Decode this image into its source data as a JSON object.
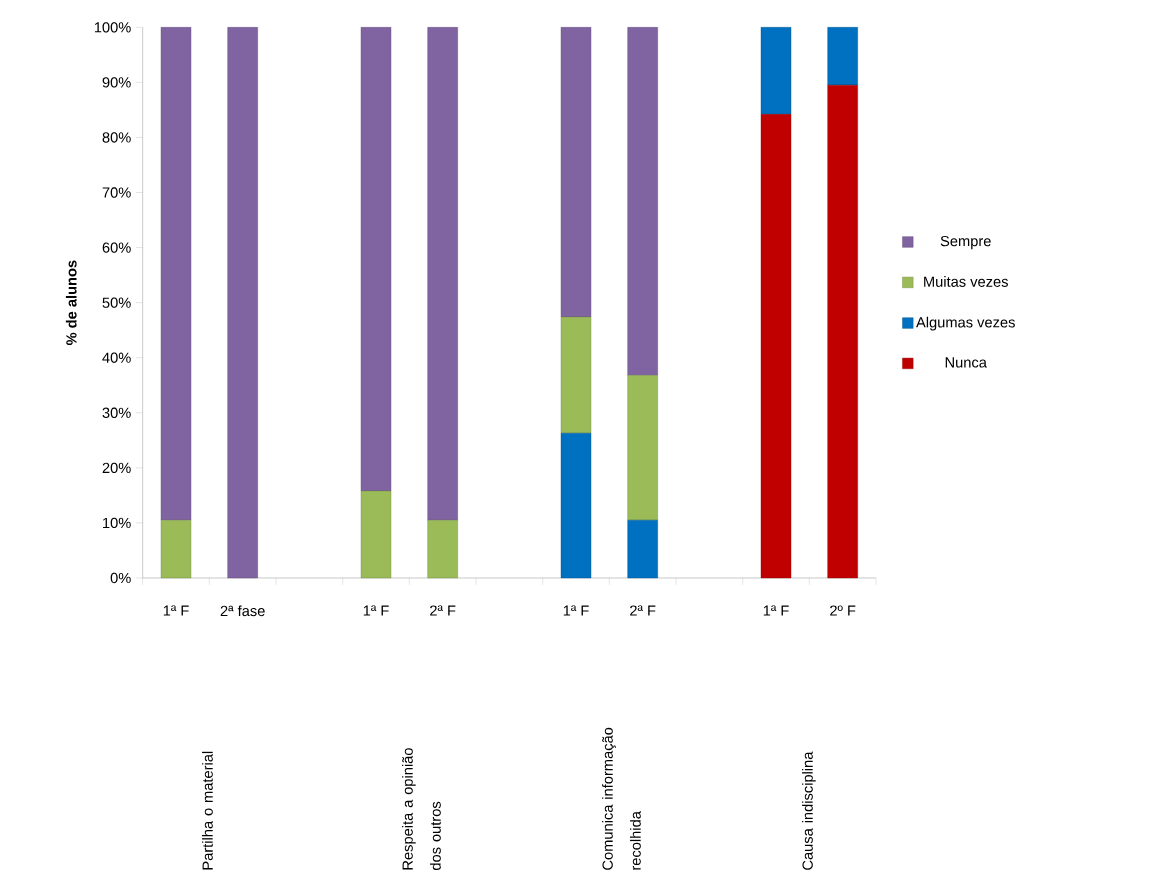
{
  "chart_data": {
    "type": "bar",
    "stacked": true,
    "ylabel": "% de alunos",
    "categories": [
      "1ª F",
      "2ª fase",
      null,
      "1ª  F",
      "2ª F",
      null,
      "1ª F",
      "2ª F",
      null,
      "1ª F",
      "2º F"
    ],
    "series": [
      {
        "name": "Nunca",
        "color": "#c00000",
        "values": [
          0,
          0,
          null,
          0,
          0,
          null,
          0,
          0,
          null,
          84.2,
          89.5
        ]
      },
      {
        "name": "Algumas vezes",
        "color": "#0070c0",
        "values": [
          0,
          0,
          null,
          0,
          0,
          null,
          26.3,
          10.5,
          null,
          15.8,
          10.5
        ]
      },
      {
        "name": "Muitas vezes",
        "color": "#9bbb59",
        "values": [
          10.5,
          0,
          null,
          15.8,
          10.5,
          null,
          21.1,
          26.3,
          null,
          0,
          0
        ]
      },
      {
        "name": "Sempre",
        "color": "#8064a2",
        "values": [
          89.5,
          100,
          null,
          84.2,
          89.5,
          null,
          52.6,
          63.2,
          null,
          0,
          0
        ]
      }
    ],
    "ylim": [
      0,
      100
    ],
    "yticks": [
      {
        "value": 0,
        "label": "0%"
      },
      {
        "value": 10,
        "label": "10%"
      },
      {
        "value": 20,
        "label": "20%"
      },
      {
        "value": 30,
        "label": "30%"
      },
      {
        "value": 40,
        "label": "40%"
      },
      {
        "value": 50,
        "label": "50%"
      },
      {
        "value": 60,
        "label": "60%"
      },
      {
        "value": 70,
        "label": "70%"
      },
      {
        "value": 80,
        "label": "80%"
      },
      {
        "value": 90,
        "label": "90%"
      },
      {
        "value": 100,
        "label": "100%"
      }
    ],
    "legend": "right",
    "annotations": [
      "Partilha o material",
      "Respeita a opinião dos outros",
      "Comunica informação recolhida",
      "Causa indisciplina"
    ]
  }
}
